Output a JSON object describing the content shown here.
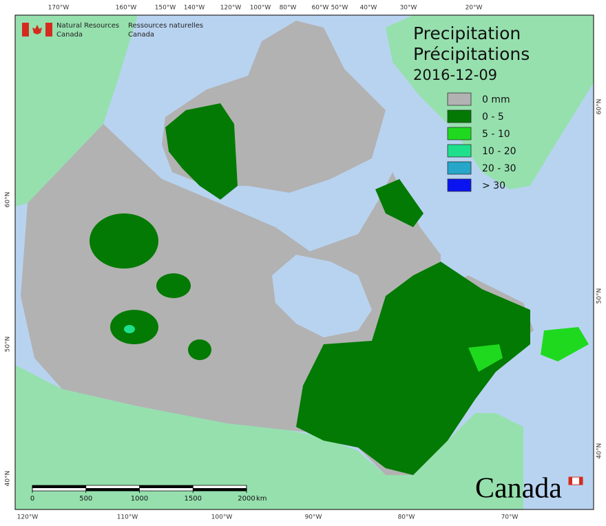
{
  "agency": {
    "en_line1": "Natural Resources",
    "en_line2": "Canada",
    "fr_line1": "Ressources naturelles",
    "fr_line2": "Canada"
  },
  "title": {
    "en": "Precipitation",
    "fr": "Précipitations",
    "date": "2016-12-09"
  },
  "legend": {
    "items": [
      {
        "label": "0 mm",
        "color": "#b2b2b2"
      },
      {
        "label": "0 - 5",
        "color": "#037a03"
      },
      {
        "label": "5 - 10",
        "color": "#1fd91f"
      },
      {
        "label": "10 - 20",
        "color": "#1ee08c"
      },
      {
        "label": "20 - 30",
        "color": "#26a6c8"
      },
      {
        "label": "> 30",
        "color": "#0a14f0"
      }
    ]
  },
  "graticule": {
    "top": [
      "170°W",
      "160°W",
      "150°W",
      "140°W",
      "120°W",
      "100°W",
      "80°W",
      "60°W",
      "50°W",
      "40°W",
      "30°W",
      "20°W"
    ],
    "bottom": [
      "120°W",
      "110°W",
      "100°W",
      "90°W",
      "80°W",
      "70°W"
    ],
    "left": [
      "60°N",
      "50°N",
      "40°N"
    ],
    "right": [
      "60°N",
      "50°N",
      "40°N"
    ]
  },
  "scale_bar": {
    "ticks": [
      0,
      500,
      1000,
      1500,
      2000
    ],
    "unit": "km"
  },
  "wordmark": "Canada"
}
